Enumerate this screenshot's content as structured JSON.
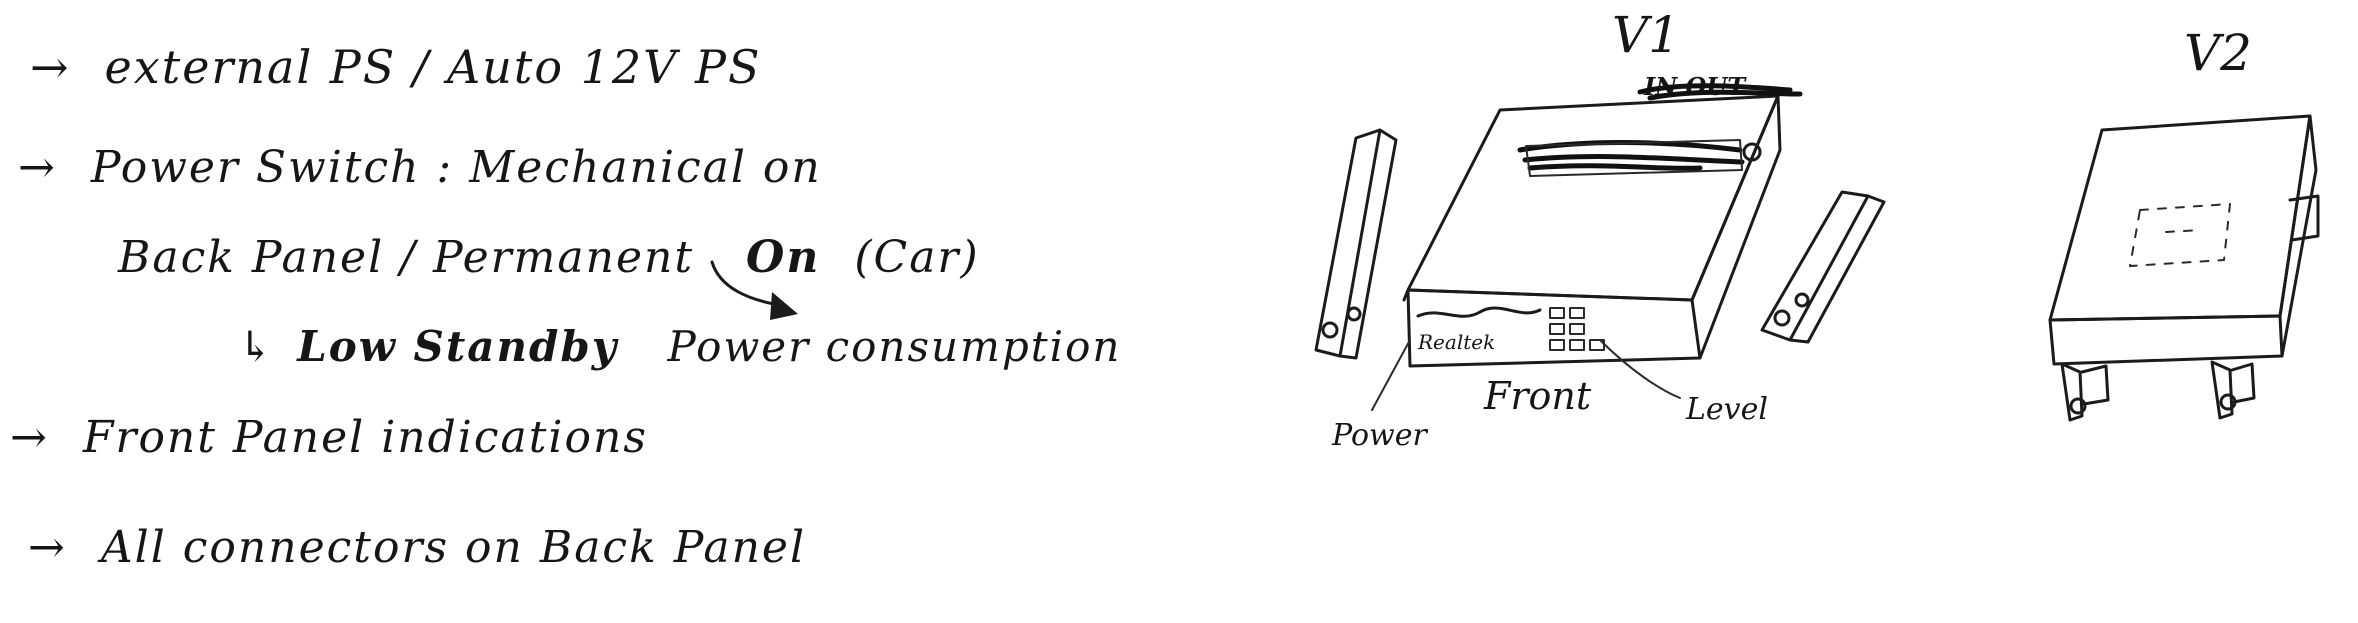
{
  "colors": {
    "ink": "#161616",
    "paper": "#ffffff"
  },
  "notes": {
    "line1": {
      "arrow": "→",
      "text": "external PS / Auto 12V PS"
    },
    "line2": {
      "arrow": "→",
      "text": "Power Switch : Mechanical on"
    },
    "line3": {
      "text_a": "Back Panel / Permanent",
      "text_b": "On",
      "text_c": "(Car)"
    },
    "line4": {
      "arrow": "↳",
      "text_a": "Low Standby",
      "text_b": "Power consumption"
    },
    "line5": {
      "arrow": "→",
      "text": "Front Panel indications"
    },
    "line6": {
      "arrow": "→",
      "text": "All connectors on Back Panel"
    }
  },
  "sketch_v1": {
    "title": "V1",
    "back_label": "IN OUT",
    "front_text": "Realtek",
    "callouts": {
      "power": "Power",
      "front": "Front",
      "level": "Level"
    }
  },
  "sketch_v2": {
    "title": "V2"
  }
}
